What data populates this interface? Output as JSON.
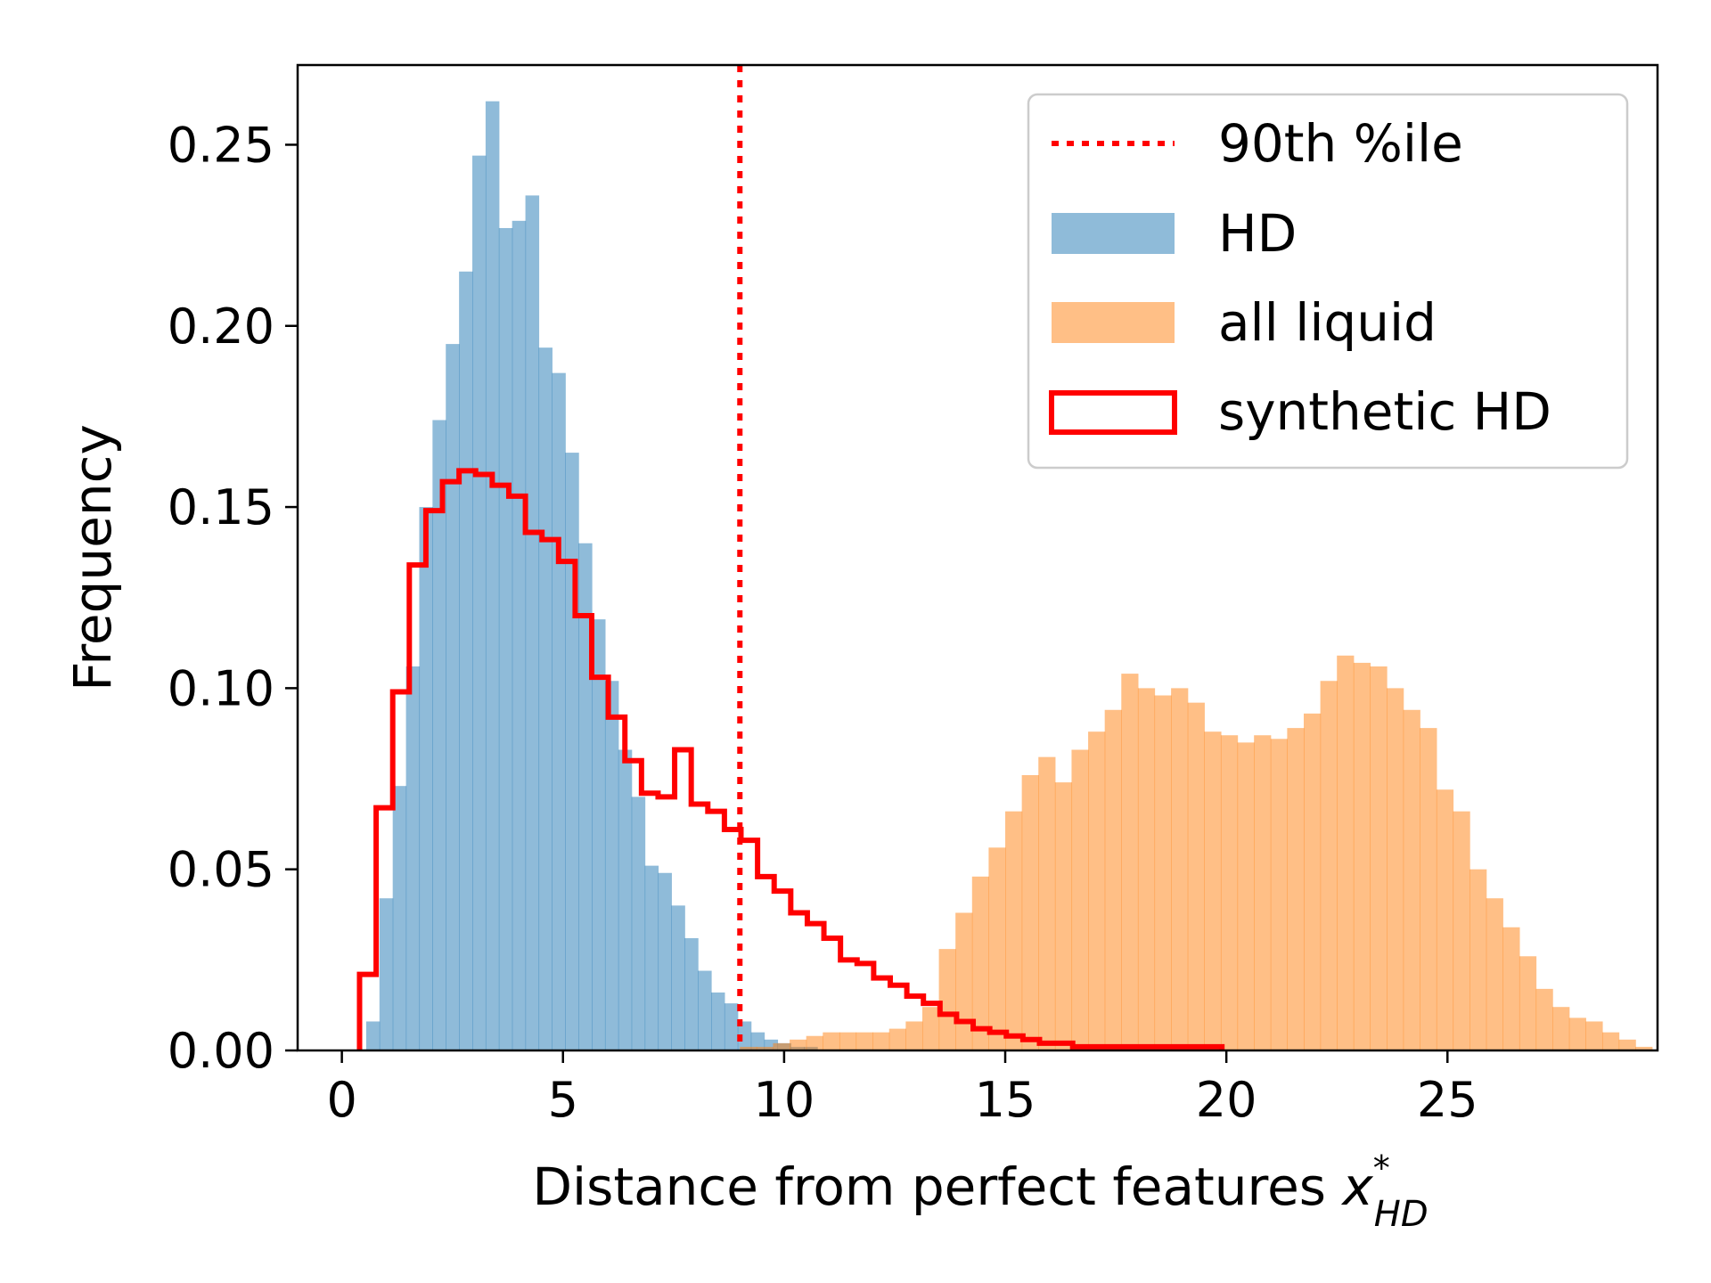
{
  "chart_data": {
    "type": "histogram",
    "title": "",
    "xlabel": "Distance from perfect features ",
    "xlabel_math": {
      "var": "x",
      "sup": "*",
      "sub": "HD"
    },
    "ylabel": "Frequency",
    "xlim": [
      -1,
      29.75
    ],
    "ylim": [
      0,
      0.272
    ],
    "xticks": [
      0,
      5,
      10,
      15,
      20,
      25
    ],
    "xtick_labels": [
      "0",
      "5",
      "10",
      "15",
      "20",
      "25"
    ],
    "yticks": [
      0,
      0.05,
      0.1,
      0.15,
      0.2,
      0.25
    ],
    "ytick_labels": [
      "0.00",
      "0.05",
      "0.10",
      "0.15",
      "0.20",
      "0.25"
    ],
    "grid": false,
    "legend_position": "top-right",
    "percentile_line": {
      "label": "90th %ile",
      "x": 9.0,
      "color": "#ff0000",
      "style": "dotted"
    },
    "series": [
      {
        "name": "HD",
        "kind": "filled",
        "color": "#1f77b4",
        "opacity": 0.5,
        "start": 0.55,
        "bin_width": 0.3,
        "values": [
          0.008,
          0.042,
          0.073,
          0.106,
          0.15,
          0.174,
          0.195,
          0.215,
          0.247,
          0.262,
          0.227,
          0.229,
          0.236,
          0.194,
          0.187,
          0.165,
          0.14,
          0.119,
          0.102,
          0.083,
          0.07,
          0.051,
          0.049,
          0.04,
          0.031,
          0.022,
          0.016,
          0.013,
          0.008,
          0.005,
          0.003,
          0.002,
          0.001,
          0.001
        ]
      },
      {
        "name": "all liquid",
        "kind": "filled",
        "color": "#ff7f0e",
        "opacity": 0.5,
        "start": 9.0,
        "bin_width": 0.375,
        "values": [
          0.001,
          0.001,
          0.002,
          0.003,
          0.004,
          0.005,
          0.005,
          0.005,
          0.005,
          0.006,
          0.008,
          0.012,
          0.028,
          0.038,
          0.048,
          0.056,
          0.066,
          0.076,
          0.081,
          0.074,
          0.083,
          0.088,
          0.094,
          0.104,
          0.1,
          0.098,
          0.1,
          0.096,
          0.088,
          0.087,
          0.085,
          0.087,
          0.086,
          0.089,
          0.093,
          0.102,
          0.109,
          0.107,
          0.106,
          0.1,
          0.094,
          0.089,
          0.072,
          0.066,
          0.05,
          0.042,
          0.034,
          0.026,
          0.017,
          0.012,
          0.009,
          0.008,
          0.005,
          0.003,
          0.001
        ]
      },
      {
        "name": "synthetic HD",
        "kind": "step",
        "color": "#ff0000",
        "start": 0.4,
        "bin_width": 0.375,
        "values": [
          0.021,
          0.067,
          0.099,
          0.134,
          0.149,
          0.157,
          0.16,
          0.159,
          0.156,
          0.153,
          0.143,
          0.141,
          0.135,
          0.12,
          0.103,
          0.092,
          0.08,
          0.071,
          0.07,
          0.083,
          0.068,
          0.066,
          0.061,
          0.058,
          0.048,
          0.044,
          0.038,
          0.035,
          0.031,
          0.025,
          0.024,
          0.02,
          0.018,
          0.015,
          0.013,
          0.01,
          0.008,
          0.006,
          0.005,
          0.004,
          0.003,
          0.002,
          0.002,
          0.001,
          0.001,
          0.001,
          0.001,
          0.001,
          0.001,
          0.001,
          0.001,
          0.001
        ]
      }
    ]
  }
}
